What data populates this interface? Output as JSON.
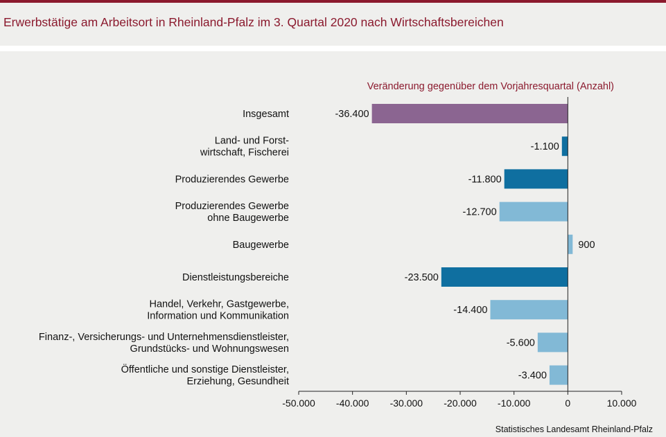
{
  "title": "Erwerbstätige am Arbeitsort in Rheinland-Pfalz im 3. Quartal 2020 nach Wirtschaftsbereichen",
  "source": "Statistisches Landesamt Rheinland-Pfalz",
  "colors": {
    "accent": "#8b1a2e",
    "total": "#8b6591",
    "sector": "#0f6fa0",
    "subsector": "#82b9d6"
  },
  "chart_data": {
    "type": "bar",
    "orientation": "horizontal",
    "title": "Veränderung gegenüber dem Vorjahresquartal (Anzahl)",
    "categories": [
      [
        "Insgesamt"
      ],
      [
        "Land- und Forst-",
        "wirtschaft, Fischerei"
      ],
      [
        "Produzierendes Gewerbe"
      ],
      [
        "Produzierendes Gewerbe",
        "ohne Baugewerbe"
      ],
      [
        "Baugewerbe"
      ],
      [
        "Dienstleistungsbereiche"
      ],
      [
        "Handel, Verkehr, Gastgewerbe,",
        "Information und Kommunikation"
      ],
      [
        "Finanz-, Versicherungs- und Unternehmensdienstleister,",
        "Grundstücks- und Wohnungswesen"
      ],
      [
        "Öffentliche und sonstige Dienstleister,",
        "Erziehung, Gesundheit"
      ]
    ],
    "values": [
      -36400,
      -1100,
      -11800,
      -12700,
      900,
      -23500,
      -14400,
      -5600,
      -3400
    ],
    "value_labels": [
      "-36.400",
      "-1.100",
      "-11.800",
      "-12.700",
      "900",
      "-23.500",
      "-14.400",
      "-5.600",
      "-3.400"
    ],
    "levels": [
      "total",
      "sector",
      "sector",
      "subsector",
      "subsector",
      "sector",
      "subsector",
      "subsector",
      "subsector"
    ],
    "xlim": [
      -50000,
      10000
    ],
    "xticks": [
      -50000,
      -40000,
      -30000,
      -20000,
      -10000,
      0,
      10000
    ],
    "xtick_labels": [
      "-50.000",
      "-40.000",
      "-30.000",
      "-20.000",
      "-10.000",
      "0",
      "10.000"
    ],
    "grid": false
  }
}
